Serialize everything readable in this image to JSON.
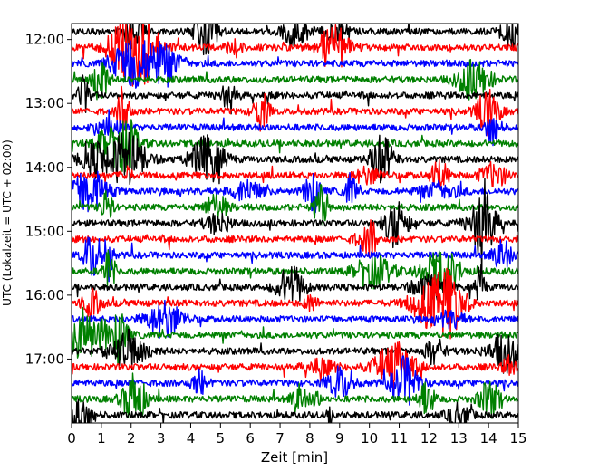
{
  "chart_data": {
    "type": "line",
    "title": "",
    "xlabel": "Zeit  [min]",
    "ylabel": "UTC (Lokalzeit = UTC + 02:00)",
    "xlim": [
      0,
      15
    ],
    "x_ticks": [
      "0",
      "1",
      "2",
      "3",
      "4",
      "5",
      "6",
      "7",
      "8",
      "9",
      "10",
      "11",
      "12",
      "13",
      "14",
      "15"
    ],
    "ylim_time": [
      "11:45",
      "18:00"
    ],
    "y_ticks": [
      "12:00",
      "13:00",
      "14:00",
      "15:00",
      "16:00",
      "17:00"
    ],
    "trace_interval_min": 15,
    "first_trace": "11:45",
    "trace_count": 25,
    "color_cycle": [
      "#000000",
      "#ff0000",
      "#0000ff",
      "#008000"
    ],
    "grid": false,
    "legend": "none"
  }
}
